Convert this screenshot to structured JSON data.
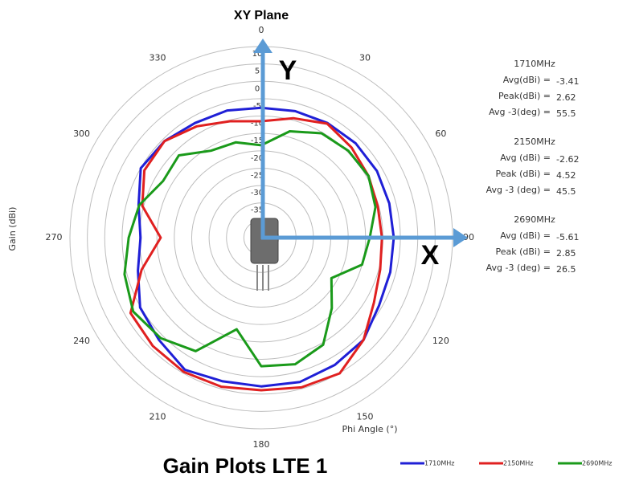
{
  "chart_data": {
    "type": "polar",
    "title": "XY Plane",
    "subtitle": "Gain Plots LTE 1",
    "radial_label": "Gain (dBi)",
    "angle_label": "Phi Angle (°)",
    "theta": [
      0,
      15,
      30,
      45,
      60,
      75,
      90,
      105,
      120,
      135,
      150,
      165,
      180,
      195,
      210,
      225,
      240,
      255,
      270,
      285,
      300,
      315,
      330,
      345
    ],
    "rlim": [
      -45,
      10
    ],
    "rticks": [
      10,
      5,
      0,
      -5,
      -10,
      -15,
      -20,
      -25,
      -30,
      -35,
      -40
    ],
    "thetaticks": [
      0,
      30,
      60,
      90,
      120,
      150,
      180,
      210,
      240,
      270,
      300,
      330
    ],
    "series": [
      {
        "name": "1710MHz",
        "color": "#1f1fd6",
        "values": [
          -7.6,
          -7.3,
          -6.9,
          -6.6,
          -6.6,
          -6.9,
          -6.9,
          -6.6,
          -5.9,
          -3.4,
          -2.7,
          -2.0,
          -2.2,
          -2.2,
          -1.1,
          -3.4,
          -4.8,
          -8.3,
          -10.3,
          -8.5,
          -5.0,
          -5.7,
          -6.9,
          -7.1
        ]
      },
      {
        "name": "2150MHz",
        "color": "#e02020",
        "values": [
          -11.5,
          -9.4,
          -7.1,
          -8.3,
          -9.4,
          -10.3,
          -10.3,
          -9.6,
          -7.6,
          -3.4,
          0.1,
          -0.4,
          -1.1,
          -0.6,
          -0.4,
          -0.9,
          -1.6,
          -9.4,
          -16.1,
          -9.6,
          -6.2,
          -5.7,
          -8.0,
          -10.3
        ]
      },
      {
        "name": "2690MHz",
        "color": "#1a9a1a",
        "values": [
          -18.4,
          -13.3,
          -10.3,
          -9.6,
          -9.4,
          -11.0,
          -13.8,
          -15.0,
          -21.7,
          -16.3,
          -9.4,
          -7.3,
          -8.0,
          -17.7,
          -7.3,
          -4.1,
          -2.5,
          -4.3,
          -6.9,
          -8.7,
          -12.4,
          -11.5,
          -16.1,
          -16.6
        ]
      }
    ],
    "axis_labels": {
      "y": "Y",
      "x": "X"
    },
    "annotations": [
      {
        "title": "1710MHz",
        "lines": [
          {
            "label": "Avg(dBi) =",
            "value": -3.41
          },
          {
            "label": "Peak(dBi) =",
            "value": 2.62
          },
          {
            "label": "Avg -3(deg) =",
            "value": 55.5
          }
        ]
      },
      {
        "title": "2150MHz",
        "lines": [
          {
            "label": "Avg (dBi) =",
            "value": -2.62
          },
          {
            "label": "Peak (dBi) =",
            "value": 4.52
          },
          {
            "label": "Avg -3 (deg) =",
            "value": 45.5
          }
        ]
      },
      {
        "title": "2690MHz",
        "lines": [
          {
            "label": "Avg (dBi) =",
            "value": -5.61
          },
          {
            "label": "Peak (dBi) =",
            "value": 2.85
          },
          {
            "label": "Avg -3 (deg) =",
            "value": 26.5
          }
        ]
      }
    ]
  }
}
